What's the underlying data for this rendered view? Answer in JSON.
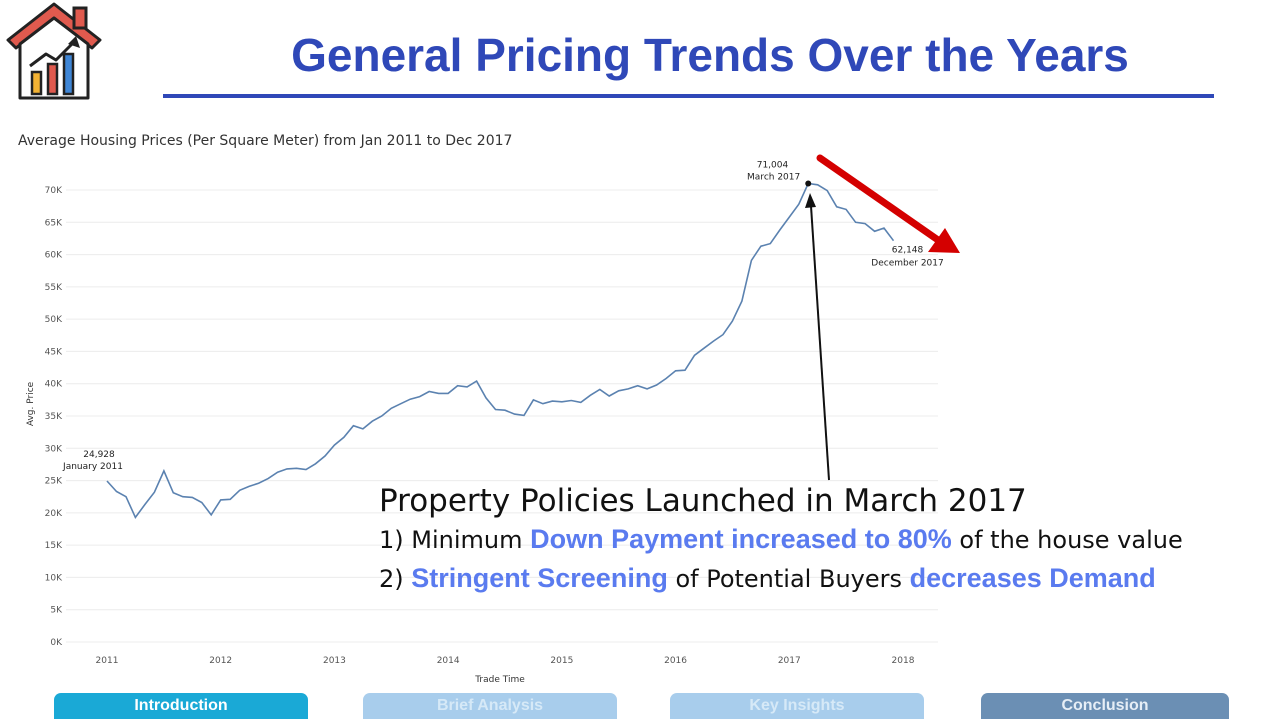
{
  "header": {
    "title": "General Pricing Trends Over the Years",
    "logo_icon": "house-chart-icon"
  },
  "chart_data": {
    "type": "line",
    "title": "Average Housing Prices (Per Square Meter) from Jan 2011 to Dec 2017",
    "xlabel": "Trade Time",
    "ylabel": "Avg. Price",
    "xlim": [
      2011,
      2018
    ],
    "ylim": [
      0,
      72000
    ],
    "x_ticks": [
      "2011",
      "2012",
      "2013",
      "2014",
      "2015",
      "2016",
      "2017",
      "2018"
    ],
    "y_ticks": [
      "0K",
      "5K",
      "10K",
      "15K",
      "20K",
      "25K",
      "30K",
      "35K",
      "40K",
      "45K",
      "50K",
      "55K",
      "60K",
      "65K",
      "70K"
    ],
    "grid": "horizontal",
    "line_color": "#5b82b0",
    "series": [
      {
        "x": [
          "2011-01",
          "2011-02",
          "2011-03",
          "2011-04",
          "2011-05",
          "2011-06",
          "2011-07",
          "2011-08",
          "2011-09",
          "2011-10",
          "2011-11",
          "2011-12",
          "2012-01",
          "2012-02",
          "2012-03",
          "2012-04",
          "2012-05",
          "2012-06",
          "2012-07",
          "2012-08",
          "2012-09",
          "2012-10",
          "2012-11",
          "2012-12",
          "2013-01",
          "2013-02",
          "2013-03",
          "2013-04",
          "2013-05",
          "2013-06",
          "2013-07",
          "2013-08",
          "2013-09",
          "2013-10",
          "2013-11",
          "2013-12",
          "2014-01",
          "2014-02",
          "2014-03",
          "2014-04",
          "2014-05",
          "2014-06",
          "2014-07",
          "2014-08",
          "2014-09",
          "2014-10",
          "2014-11",
          "2014-12",
          "2015-01",
          "2015-02",
          "2015-03",
          "2015-04",
          "2015-05",
          "2015-06",
          "2015-07",
          "2015-08",
          "2015-09",
          "2015-10",
          "2015-11",
          "2015-12",
          "2016-01",
          "2016-02",
          "2016-03",
          "2016-04",
          "2016-05",
          "2016-06",
          "2016-07",
          "2016-08",
          "2016-09",
          "2016-10",
          "2016-11",
          "2016-12",
          "2017-01",
          "2017-02",
          "2017-03",
          "2017-04",
          "2017-05",
          "2017-06",
          "2017-07",
          "2017-08",
          "2017-09",
          "2017-10",
          "2017-11",
          "2017-12"
        ],
        "values": [
          24928,
          23300,
          22500,
          19300,
          21300,
          23200,
          26500,
          23100,
          22500,
          22400,
          21600,
          19700,
          22000,
          22100,
          23500,
          24100,
          24600,
          25300,
          26300,
          26800,
          26900,
          26700,
          27600,
          28800,
          30500,
          31700,
          33500,
          33000,
          34200,
          35000,
          36200,
          36900,
          37600,
          38000,
          38800,
          38500,
          38500,
          39700,
          39500,
          40400,
          37800,
          36000,
          35900,
          35300,
          35100,
          37500,
          36900,
          37300,
          37200,
          37400,
          37100,
          38200,
          39100,
          38100,
          38900,
          39200,
          39700,
          39200,
          39800,
          40800,
          42000,
          42100,
          44400,
          45500,
          46600,
          47600,
          49700,
          52800,
          59100,
          61300,
          61700,
          63800,
          65800,
          67800,
          71004,
          70800,
          69900,
          67400,
          67000,
          65000,
          64800,
          63600,
          64100,
          62148
        ]
      }
    ],
    "annotations": [
      {
        "value": "24,928",
        "label": "January 2011"
      },
      {
        "value": "71,004",
        "label": "March 2017"
      },
      {
        "value": "62,148",
        "label": "December 2017"
      }
    ],
    "trend_arrow_color": "#d40000"
  },
  "policy": {
    "heading": "Property Policies Launched in March 2017",
    "line1_prefix": "1) Minimum ",
    "line1_highlight": "Down Payment increased to 80%",
    "line1_suffix": " of the house value",
    "line2_prefix": "2) ",
    "line2_highlight1": "Stringent Screening",
    "line2_mid": " of Potential Buyers ",
    "line2_highlight2": "decreases Demand",
    "highlight_color": "#5a7bef"
  },
  "nav": {
    "tabs": [
      {
        "label": "Introduction",
        "color": "#1aa9d6",
        "text_color": "#ffffff"
      },
      {
        "label": "Brief Analysis",
        "color": "#a8cdec",
        "text_color": "#d6e9f7"
      },
      {
        "label": "Key Insights",
        "color": "#a8cdec",
        "text_color": "#d6e9f7"
      },
      {
        "label": "Conclusion",
        "color": "#6b8fb4",
        "text_color": "#e6eef6"
      }
    ]
  }
}
